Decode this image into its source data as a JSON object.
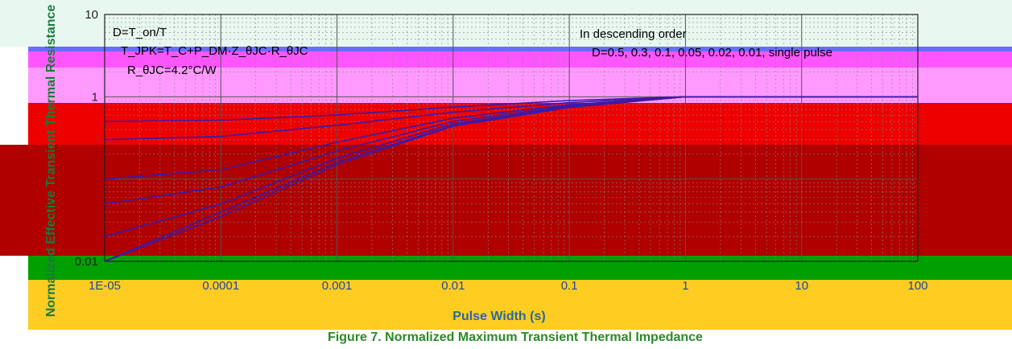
{
  "chart_data": {
    "type": "line",
    "xscale": "log",
    "yscale": "log",
    "xlim": [
      1e-05,
      100
    ],
    "ylim": [
      0.01,
      10
    ],
    "xticks": [
      "1E-05",
      "0.0001",
      "0.001",
      "0.01",
      "0.1",
      "1",
      "10",
      "100"
    ],
    "yticks": [
      "0.01",
      "1",
      "10"
    ],
    "xlabel": "Pulse Width (s)",
    "ylabel": "Normalized Effective Transient Thermal Resistance",
    "annotations": [
      "D=T_on/T",
      "T_JPK=T_C+P_DM·Z_θJC·R_θJC",
      "R_θJC=4.2°C/W",
      "In descending order",
      "D=0.5, 0.3, 0.1, 0.05, 0.02, 0.01, single pulse"
    ],
    "series": [
      {
        "name": "",
        "x": [
          1e-05,
          0.0001,
          0.001,
          0.01,
          0.1,
          1,
          10,
          100
        ],
        "y": [
          0.5,
          0.52,
          0.6,
          0.75,
          0.9,
          1.0,
          1.0,
          1.0
        ]
      },
      {
        "name": "",
        "x": [
          1e-05,
          0.0001,
          0.001,
          0.01,
          0.1,
          1,
          10,
          100
        ],
        "y": [
          0.3,
          0.33,
          0.45,
          0.65,
          0.85,
          1.0,
          1.0,
          1.0
        ]
      },
      {
        "name": "",
        "x": [
          1e-05,
          0.0001,
          0.001,
          0.01,
          0.1,
          1,
          10,
          100
        ],
        "y": [
          0.1,
          0.13,
          0.28,
          0.55,
          0.8,
          1.0,
          1.0,
          1.0
        ]
      },
      {
        "name": "",
        "x": [
          1e-05,
          0.0001,
          0.001,
          0.01,
          0.1,
          1,
          10,
          100
        ],
        "y": [
          0.05,
          0.08,
          0.22,
          0.5,
          0.78,
          1.0,
          1.0,
          1.0
        ]
      },
      {
        "name": "",
        "x": [
          1e-05,
          0.0001,
          0.001,
          0.01,
          0.1,
          1,
          10,
          100
        ],
        "y": [
          0.02,
          0.05,
          0.18,
          0.47,
          0.76,
          1.0,
          1.0,
          1.0
        ]
      },
      {
        "name": "",
        "x": [
          1e-05,
          0.0001,
          0.001,
          0.01,
          0.1,
          1,
          10,
          100
        ],
        "y": [
          0.01,
          0.04,
          0.16,
          0.45,
          0.75,
          1.0,
          1.0,
          1.0
        ]
      },
      {
        "name": "",
        "x": [
          1e-05,
          0.0001,
          0.001,
          0.01,
          0.1,
          1,
          10,
          100
        ],
        "y": [
          0.01,
          0.035,
          0.15,
          0.44,
          0.74,
          1.0,
          1.0,
          1.0
        ]
      }
    ],
    "grid": true,
    "caption": "Figure 7. Normalized Maximum Transient Thermal Impedance"
  },
  "colors": {
    "band_top": "#e8f7ef",
    "band_blue": "#6b6bff",
    "band_magenta": "#ff33ff",
    "band_pink": "#ff88ff",
    "band_red": "#ee0000",
    "band_darkred": "#b00000",
    "band_green": "#00a000",
    "band_yellow": "#ffcc22",
    "series_color": "#3a1aa8"
  }
}
